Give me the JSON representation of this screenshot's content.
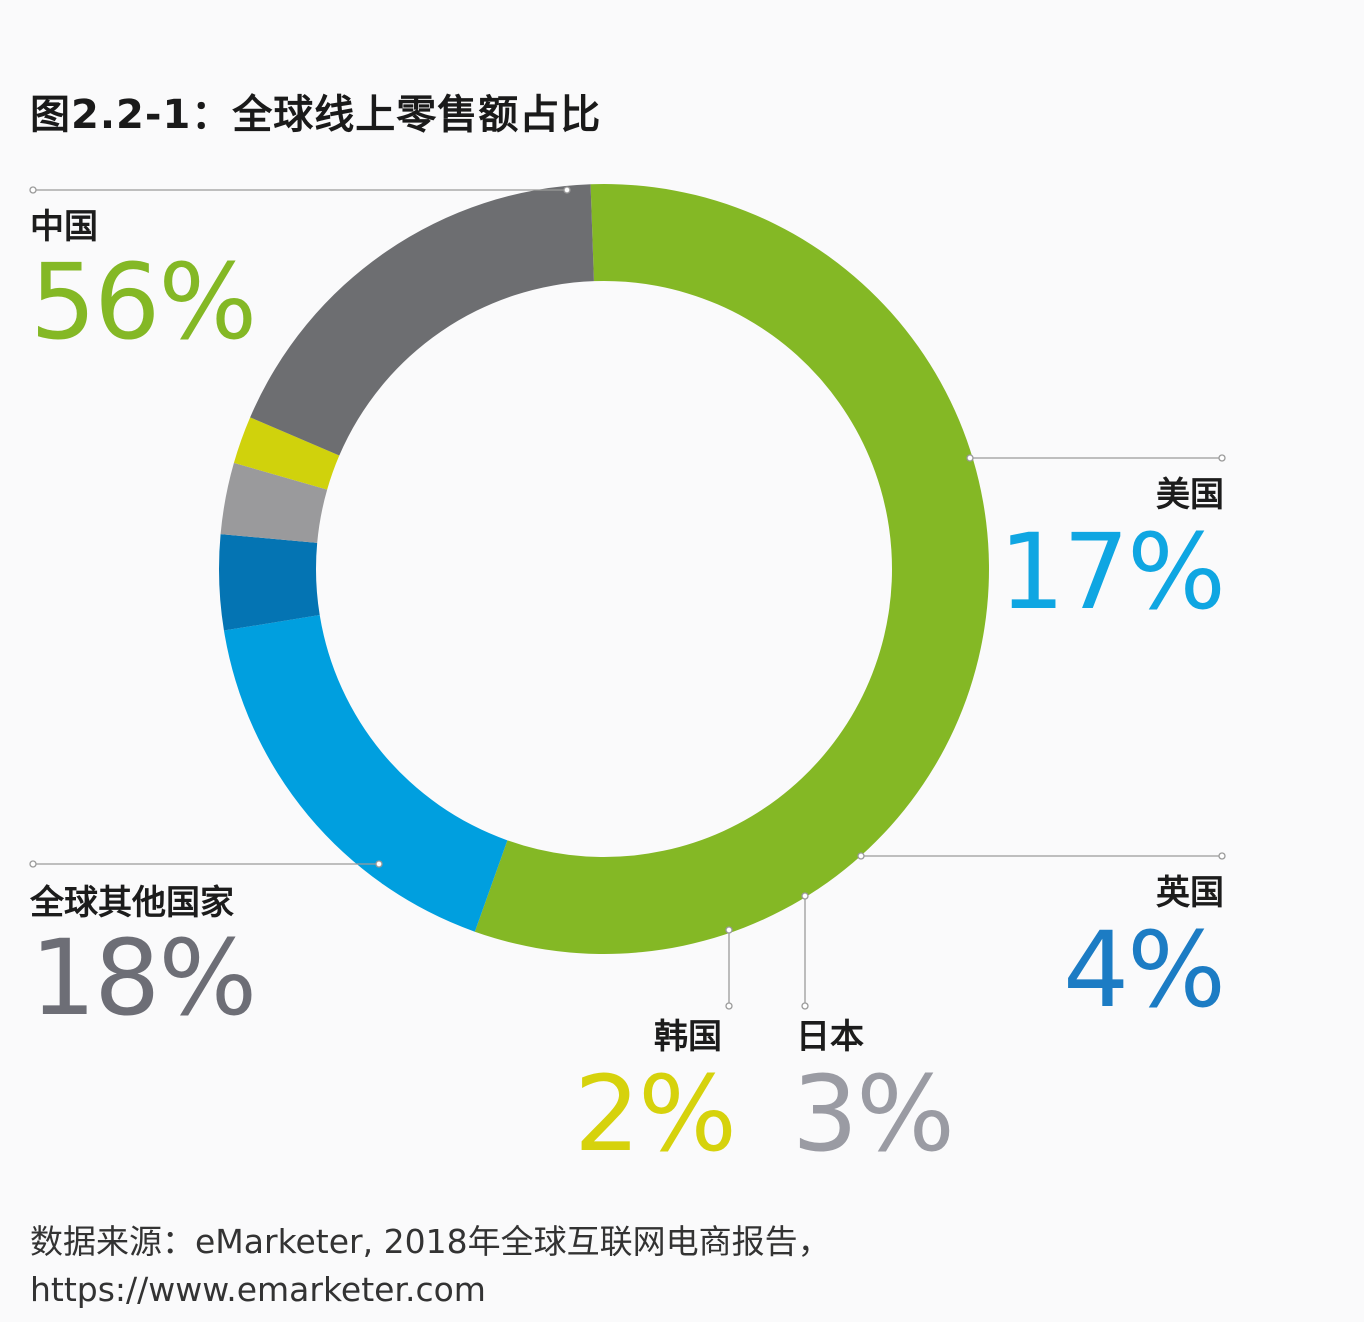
{
  "title": "图2.2-1：全球线上零售额占比",
  "chart_data": {
    "type": "pie",
    "title": "图2.2-1：全球线上零售额占比",
    "slices": [
      {
        "label": "中国",
        "value": 56,
        "display": "56%",
        "color": "#84b825"
      },
      {
        "label": "美国",
        "value": 17,
        "display": "17%",
        "color": "#009fdf"
      },
      {
        "label": "英国",
        "value": 4,
        "display": "4%",
        "color": "#0474b3"
      },
      {
        "label": "日本",
        "value": 3,
        "display": "3%",
        "color": "#9a9a9c"
      },
      {
        "label": "韩国",
        "value": 2,
        "display": "2%",
        "color": "#d0d20c"
      },
      {
        "label": "全球其他国家",
        "value": 18,
        "display": "18%",
        "color": "#6d6e71"
      }
    ]
  },
  "label_colors": {
    "中国": "#84b825",
    "美国": "#0fa6e2",
    "英国": "#1c7cc4",
    "日本": "#9a9ba3",
    "韩国": "#d6d20c",
    "全球其他国家": "#6d6e76"
  },
  "source": {
    "line1": "数据来源：eMarketer, 2018年全球互联网电商报告，",
    "line2": "https://www.emarketer.com"
  }
}
